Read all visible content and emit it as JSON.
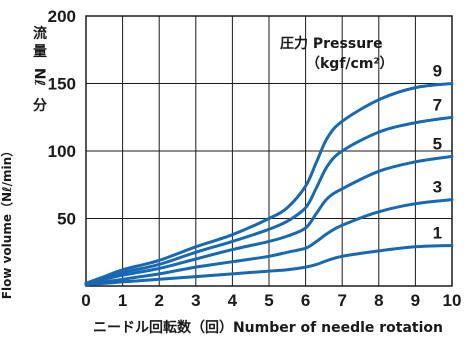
{
  "chart_data": {
    "type": "line",
    "xlabel": "ニードル回転数（回）Number of needle rotation",
    "ylabel": "Flow volume（Nℓ/min）",
    "ylabel_jp": [
      "流",
      "量",
      "Nℓ",
      "分"
    ],
    "xlim": [
      0,
      10
    ],
    "ylim": [
      0,
      200
    ],
    "x_ticks": [
      "0",
      "1",
      "2",
      "3",
      "4",
      "5",
      "6",
      "7",
      "8",
      "9",
      "10"
    ],
    "y_ticks": [
      {
        "value": 50,
        "label": "50"
      },
      {
        "value": 100,
        "label": "100"
      },
      {
        "value": 150,
        "label": "150"
      },
      {
        "value": 200,
        "label": "200"
      }
    ],
    "grid": true,
    "line_color": "#1769b3",
    "legend_title": "圧力 Pressure",
    "legend_unit": "（kgf/cm²）",
    "series": [
      {
        "name": "9",
        "x": [
          0,
          0.5,
          1,
          2,
          3,
          4,
          5,
          5.5,
          6,
          6.3,
          6.6,
          7,
          8,
          9,
          10
        ],
        "y": [
          2,
          7,
          12,
          19,
          29,
          38,
          50,
          58,
          74,
          92,
          110,
          122,
          138,
          147,
          150
        ]
      },
      {
        "name": "7",
        "x": [
          0,
          0.5,
          1,
          2,
          3,
          4,
          5,
          5.5,
          6,
          6.3,
          6.6,
          7,
          8,
          9,
          10
        ],
        "y": [
          2,
          6,
          10,
          16,
          25,
          33,
          42,
          48,
          58,
          73,
          89,
          100,
          114,
          121,
          125
        ]
      },
      {
        "name": "5",
        "x": [
          0,
          0.5,
          1,
          2,
          3,
          4,
          5,
          5.5,
          6,
          6.3,
          6.6,
          7,
          8,
          9,
          10
        ],
        "y": [
          2,
          5,
          8,
          13,
          20,
          27,
          33,
          37,
          43,
          54,
          65,
          72,
          85,
          92,
          96
        ]
      },
      {
        "name": "3",
        "x": [
          0,
          0.5,
          1,
          2,
          3,
          4,
          5,
          5.5,
          6,
          6.3,
          6.6,
          7,
          8,
          9,
          10
        ],
        "y": [
          1,
          3,
          5,
          9,
          14,
          18,
          22,
          25,
          28,
          33,
          39,
          45,
          55,
          61,
          64
        ]
      },
      {
        "name": "1",
        "x": [
          0,
          0.5,
          1,
          2,
          3,
          4,
          5,
          5.5,
          6,
          6.3,
          6.6,
          7,
          8,
          9,
          10
        ],
        "y": [
          1,
          2,
          3,
          5,
          7,
          9,
          11,
          12,
          14,
          16,
          19,
          22,
          26,
          29,
          30
        ]
      }
    ]
  }
}
